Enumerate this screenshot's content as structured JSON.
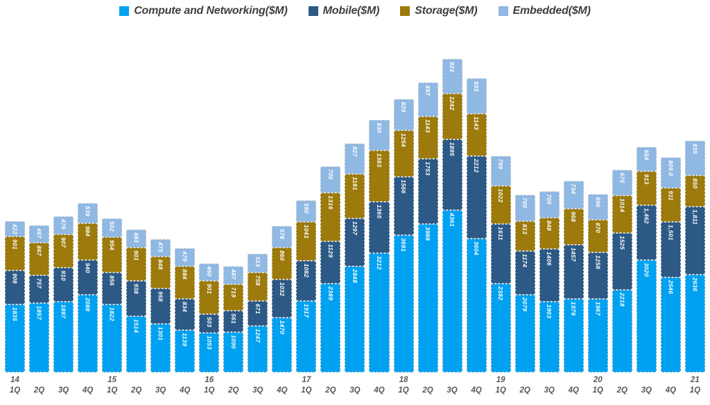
{
  "page": {
    "background": "#ffffff"
  },
  "legend": {
    "position": "top-center"
  },
  "chart_data": {
    "type": "bar",
    "stacked": true,
    "title": "",
    "xlabel": "",
    "ylabel": "",
    "grid": false,
    "y_axis_visible": false,
    "x_axis_two_rows": true,
    "text_colors": {
      "axis": "#595959",
      "legend": "#3f3f3f",
      "segment_label": "#ffffff"
    },
    "categories": [
      "14 1Q",
      "14 2Q",
      "14 3Q",
      "14 4Q",
      "15 1Q",
      "15 2Q",
      "15 3Q",
      "15 4Q",
      "16 1Q",
      "16 2Q",
      "16 3Q",
      "16 4Q",
      "17 1Q",
      "17 2Q",
      "17 3Q",
      "17 4Q",
      "18 1Q",
      "18 2Q",
      "18 3Q",
      "18 4Q",
      "19 1Q",
      "19 2Q",
      "19 3Q",
      "19 4Q",
      "20 1Q",
      "20 2Q",
      "20 3Q",
      "20 4Q",
      "21 1Q"
    ],
    "series": [
      {
        "key": "compute",
        "name": "Compute and Networking($M)",
        "color": "#00A1F1",
        "values": [
          1835,
          1857,
          1897,
          2088,
          1822,
          1514,
          1301,
          1139,
          1053,
          1090,
          1247,
          1470,
          1917,
          2389,
          2848,
          3212,
          3691,
          3988,
          4361,
          3604,
          2382,
          2079,
          1903,
          1979,
          1967,
          2218,
          3020,
          2546,
          2636
        ],
        "labels": [
          "1835",
          "1857",
          "1897",
          "2088",
          "1822",
          "1514",
          "1301",
          "1139",
          "1053",
          "1090",
          "1247",
          "1470",
          "1917",
          "2389",
          "2848",
          "3212",
          "3691",
          "3988",
          "4361",
          "3604",
          "2382",
          "2079",
          "1903",
          "1979",
          "1967",
          "2218",
          "3020",
          "2546",
          "2636"
        ]
      },
      {
        "key": "mobile",
        "name": "Mobile($M)",
        "color": "#2C5985",
        "values": [
          908,
          757,
          910,
          940,
          856,
          938,
          958,
          834,
          503,
          561,
          671,
          1032,
          1082,
          1129,
          1297,
          1365,
          1566,
          1753,
          1895,
          2212,
          1611,
          1174,
          1406,
          1457,
          1258,
          1525,
          1462,
          1501,
          1811
        ],
        "labels": [
          "908",
          "757",
          "910",
          "940",
          "856",
          "938",
          "958",
          "834",
          "503",
          "561",
          "671",
          "1032",
          "1082",
          "1129",
          "1297",
          "1365",
          "1566",
          "1753",
          "1895",
          "2212",
          "1611",
          "1174",
          "1406",
          "1457",
          "1258",
          "1525",
          "1,462",
          "1,501",
          "1,811"
        ]
      },
      {
        "key": "storage",
        "name": "Storage($M)",
        "color": "#9C7A0B",
        "values": [
          901,
          867,
          907,
          984,
          954,
          901,
          848,
          884,
          901,
          719,
          758,
          860,
          1041,
          1316,
          1181,
          1383,
          1254,
          1143,
          1242,
          1143,
          1022,
          813,
          848,
          968,
          870,
          1014,
          913,
          911,
          850
        ],
        "labels": [
          "901",
          "867",
          "907",
          "984",
          "954",
          "901",
          "848",
          "884",
          "901",
          "719",
          "758",
          "860",
          "1041",
          "1316",
          "1181",
          "1383",
          "1254",
          "1143",
          "1242",
          "1143",
          "1022",
          "813",
          "848",
          "968",
          "870",
          "1014",
          "913",
          "911",
          "850"
        ]
      },
      {
        "key": "embedded",
        "name": "Embedded($M)",
        "color": "#8FB8E3",
        "values": [
          422,
          467,
          476,
          539,
          502,
          483,
          475,
          479,
          460,
          487,
          513,
          578,
          590,
          700,
          827,
          830,
          829,
          897,
          923,
          933,
          799,
          700,
          705,
          734,
          696,
          675,
          654,
          809,
          935
        ],
        "labels": [
          "422",
          "467",
          "476",
          "539",
          "502",
          "483",
          "475",
          "479",
          "460",
          "487",
          "513",
          "578",
          "590",
          "700",
          "827",
          "830",
          "829",
          "897",
          "923",
          "933",
          "799",
          "700",
          "705",
          "734",
          "696",
          "675",
          "654",
          "809.0",
          "935"
        ]
      }
    ]
  }
}
